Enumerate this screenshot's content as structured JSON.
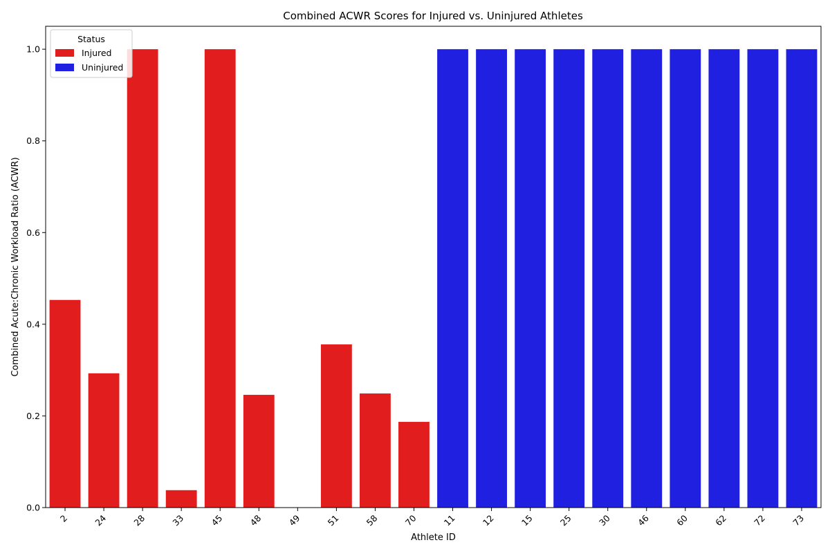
{
  "chart_data": {
    "type": "bar",
    "title": "Combined ACWR Scores for Injured vs. Uninjured Athletes",
    "xlabel": "Athlete ID",
    "ylabel": "Combined Acute:Chronic Workload Ratio (ACWR)",
    "ylim": [
      0,
      1.05
    ],
    "yticks": [
      "0.0",
      "0.2",
      "0.4",
      "0.6",
      "0.8",
      "1.0"
    ],
    "grid": false,
    "legend": {
      "title": "Status",
      "placement": "top-left",
      "entries": [
        {
          "label": "Injured",
          "color": "#e11d1d"
        },
        {
          "label": "Uninjured",
          "color": "#2020e0"
        }
      ]
    },
    "categories": [
      "2",
      "24",
      "28",
      "33",
      "45",
      "48",
      "49",
      "51",
      "58",
      "70",
      "11",
      "12",
      "15",
      "25",
      "30",
      "46",
      "60",
      "62",
      "72",
      "73"
    ],
    "series": [
      {
        "name": "Injured",
        "color": "#e11d1d",
        "values": [
          0.453,
          0.293,
          1.0,
          0.038,
          1.0,
          0.246,
          0.0,
          0.356,
          0.249,
          0.187,
          null,
          null,
          null,
          null,
          null,
          null,
          null,
          null,
          null,
          null
        ]
      },
      {
        "name": "Uninjured",
        "color": "#2020e0",
        "values": [
          null,
          null,
          null,
          null,
          null,
          null,
          null,
          null,
          null,
          null,
          1.0,
          1.0,
          1.0,
          1.0,
          1.0,
          1.0,
          1.0,
          1.0,
          1.0,
          1.0
        ]
      }
    ]
  }
}
